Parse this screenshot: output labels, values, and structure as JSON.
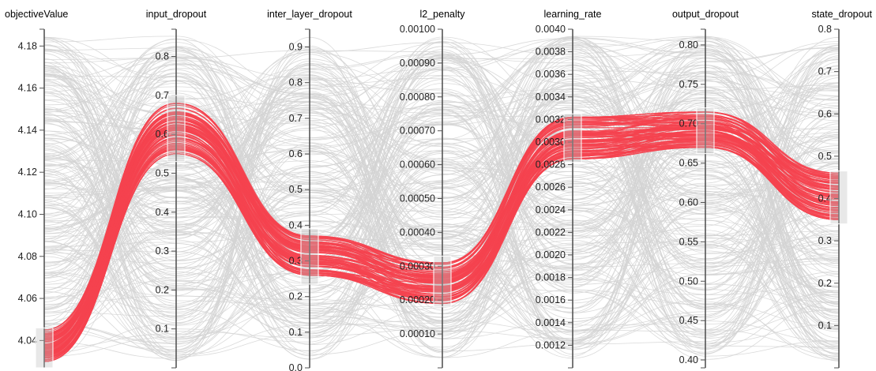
{
  "chart_data": {
    "type": "parallel-coordinates",
    "colors": {
      "background_lines": "#d3d3d3",
      "selected_lines": "#f5424f",
      "axis": "#555555",
      "brush": "#bdbdbd"
    },
    "axes": [
      {
        "name": "objectiveValue",
        "range": [
          4.027,
          4.188
        ],
        "tick_labels": [
          "4.04",
          "4.06",
          "4.08",
          "4.10",
          "4.12",
          "4.14",
          "4.16",
          "4.18"
        ],
        "brush": [
          4.027,
          4.046
        ]
      },
      {
        "name": "input_dropout",
        "range": [
          0.0,
          0.87
        ],
        "tick_labels": [
          "0.1",
          "0.2",
          "0.3",
          "0.4",
          "0.5",
          "0.6",
          "0.7",
          "0.8"
        ],
        "brush": [
          0.53,
          0.7
        ]
      },
      {
        "name": "inter_layer_dropout",
        "range": [
          0.0,
          0.95
        ],
        "tick_labels": [
          "0.0",
          "0.1",
          "0.2",
          "0.3",
          "0.4",
          "0.5",
          "0.6",
          "0.7",
          "0.8",
          "0.9"
        ],
        "brush": [
          0.235,
          0.39
        ]
      },
      {
        "name": "l2_penalty",
        "range": [
          0.0,
          0.001
        ],
        "tick_labels": [
          "0.00010",
          "0.00020",
          "0.00030",
          "0.00040",
          "0.00050",
          "0.00060",
          "0.00070",
          "0.00080",
          "0.00090",
          "0.00100"
        ],
        "brush": [
          0.00018,
          0.00033
        ]
      },
      {
        "name": "learning_rate",
        "range": [
          0.001,
          0.004
        ],
        "tick_labels": [
          "0.0012",
          "0.0014",
          "0.0016",
          "0.0018",
          "0.0020",
          "0.0022",
          "0.0024",
          "0.0026",
          "0.0028",
          "0.0030",
          "0.0032",
          "0.0034",
          "0.0036",
          "0.0038",
          "0.0040"
        ],
        "brush": [
          0.00282,
          0.00325
        ]
      },
      {
        "name": "output_dropout",
        "range": [
          0.39,
          0.82
        ],
        "tick_labels": [
          "0.40",
          "0.45",
          "0.50",
          "0.55",
          "0.60",
          "0.65",
          "0.70",
          "0.75",
          "0.80"
        ],
        "brush": [
          0.662,
          0.72
        ]
      },
      {
        "name": "state_dropout",
        "range": [
          0.0,
          0.8
        ],
        "tick_labels": [
          "0.1",
          "0.2",
          "0.3",
          "0.4",
          "0.5",
          "0.6",
          "0.7",
          "0.8"
        ],
        "brush": [
          0.34,
          0.465
        ]
      }
    ],
    "selected_ranges": [
      [
        4.03,
        4.045
      ],
      [
        0.55,
        0.68
      ],
      [
        0.26,
        0.37
      ],
      [
        0.00019,
        0.00031
      ],
      [
        0.00285,
        0.00322
      ],
      [
        0.67,
        0.715
      ],
      [
        0.35,
        0.46
      ]
    ],
    "background_line_count": 260,
    "selected_line_count": 90
  }
}
